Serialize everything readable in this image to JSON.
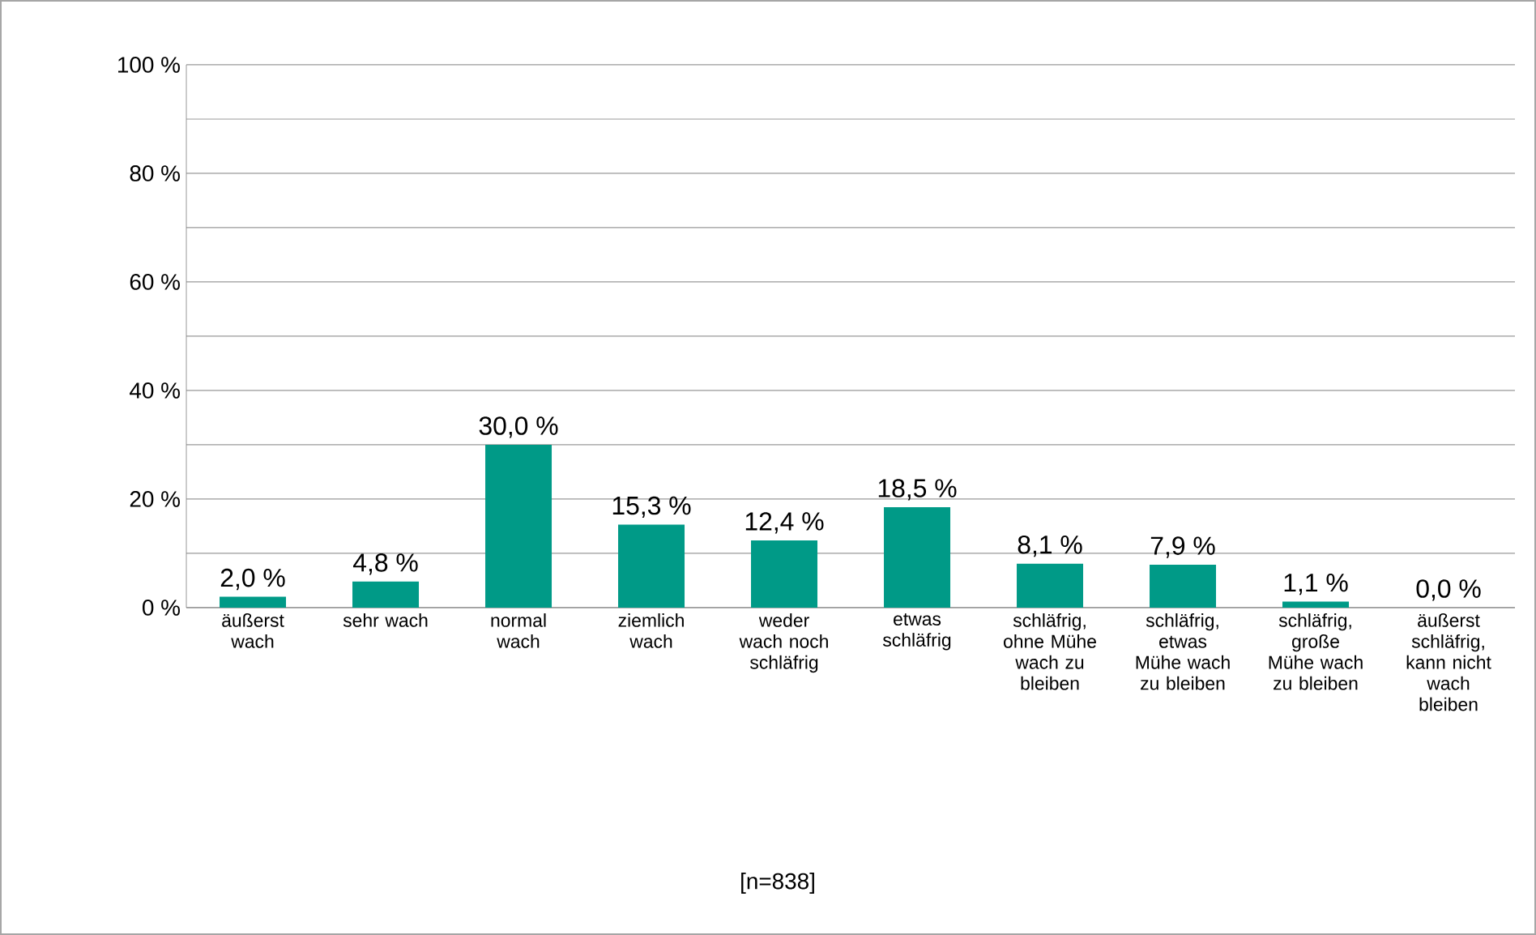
{
  "chart_data": {
    "type": "bar",
    "categories": [
      "äußerst wach",
      "sehr wach",
      "normal wach",
      "ziemlich wach",
      "weder wach noch schläfrig",
      "etwas schläfrig",
      "schläfrig, ohne Mühe wach zu bleiben",
      "schläfrig, etwas Mühe wach zu bleiben",
      "schläfrig, große Mühe wach zu bleiben",
      "äußerst schläfrig, kann nicht wach bleiben"
    ],
    "values": [
      2.0,
      4.8,
      30.0,
      15.3,
      12.4,
      18.5,
      8.1,
      7.9,
      1.1,
      0.0
    ],
    "value_labels": [
      "2,0 %",
      "4,8 %",
      "30,0 %",
      "15,3 %",
      "12,4 %",
      "18,5 %",
      "8,1 %",
      "7,9 %",
      "1,1 %",
      "0,0 %"
    ],
    "color": "#009a87",
    "ylim": [
      0,
      100
    ],
    "yticks": [
      {
        "value": 0,
        "label": "0 %"
      },
      {
        "value": 10,
        "label": null
      },
      {
        "value": 20,
        "label": "20 %"
      },
      {
        "value": 30,
        "label": null
      },
      {
        "value": 40,
        "label": "40 %"
      },
      {
        "value": 50,
        "label": null
      },
      {
        "value": 60,
        "label": "60 %"
      },
      {
        "value": 70,
        "label": null
      },
      {
        "value": 80,
        "label": "80 %"
      },
      {
        "value": 90,
        "label": null
      },
      {
        "value": 100,
        "label": "100 %"
      }
    ],
    "grid": "y",
    "annotations": [
      "[n=838]"
    ]
  }
}
